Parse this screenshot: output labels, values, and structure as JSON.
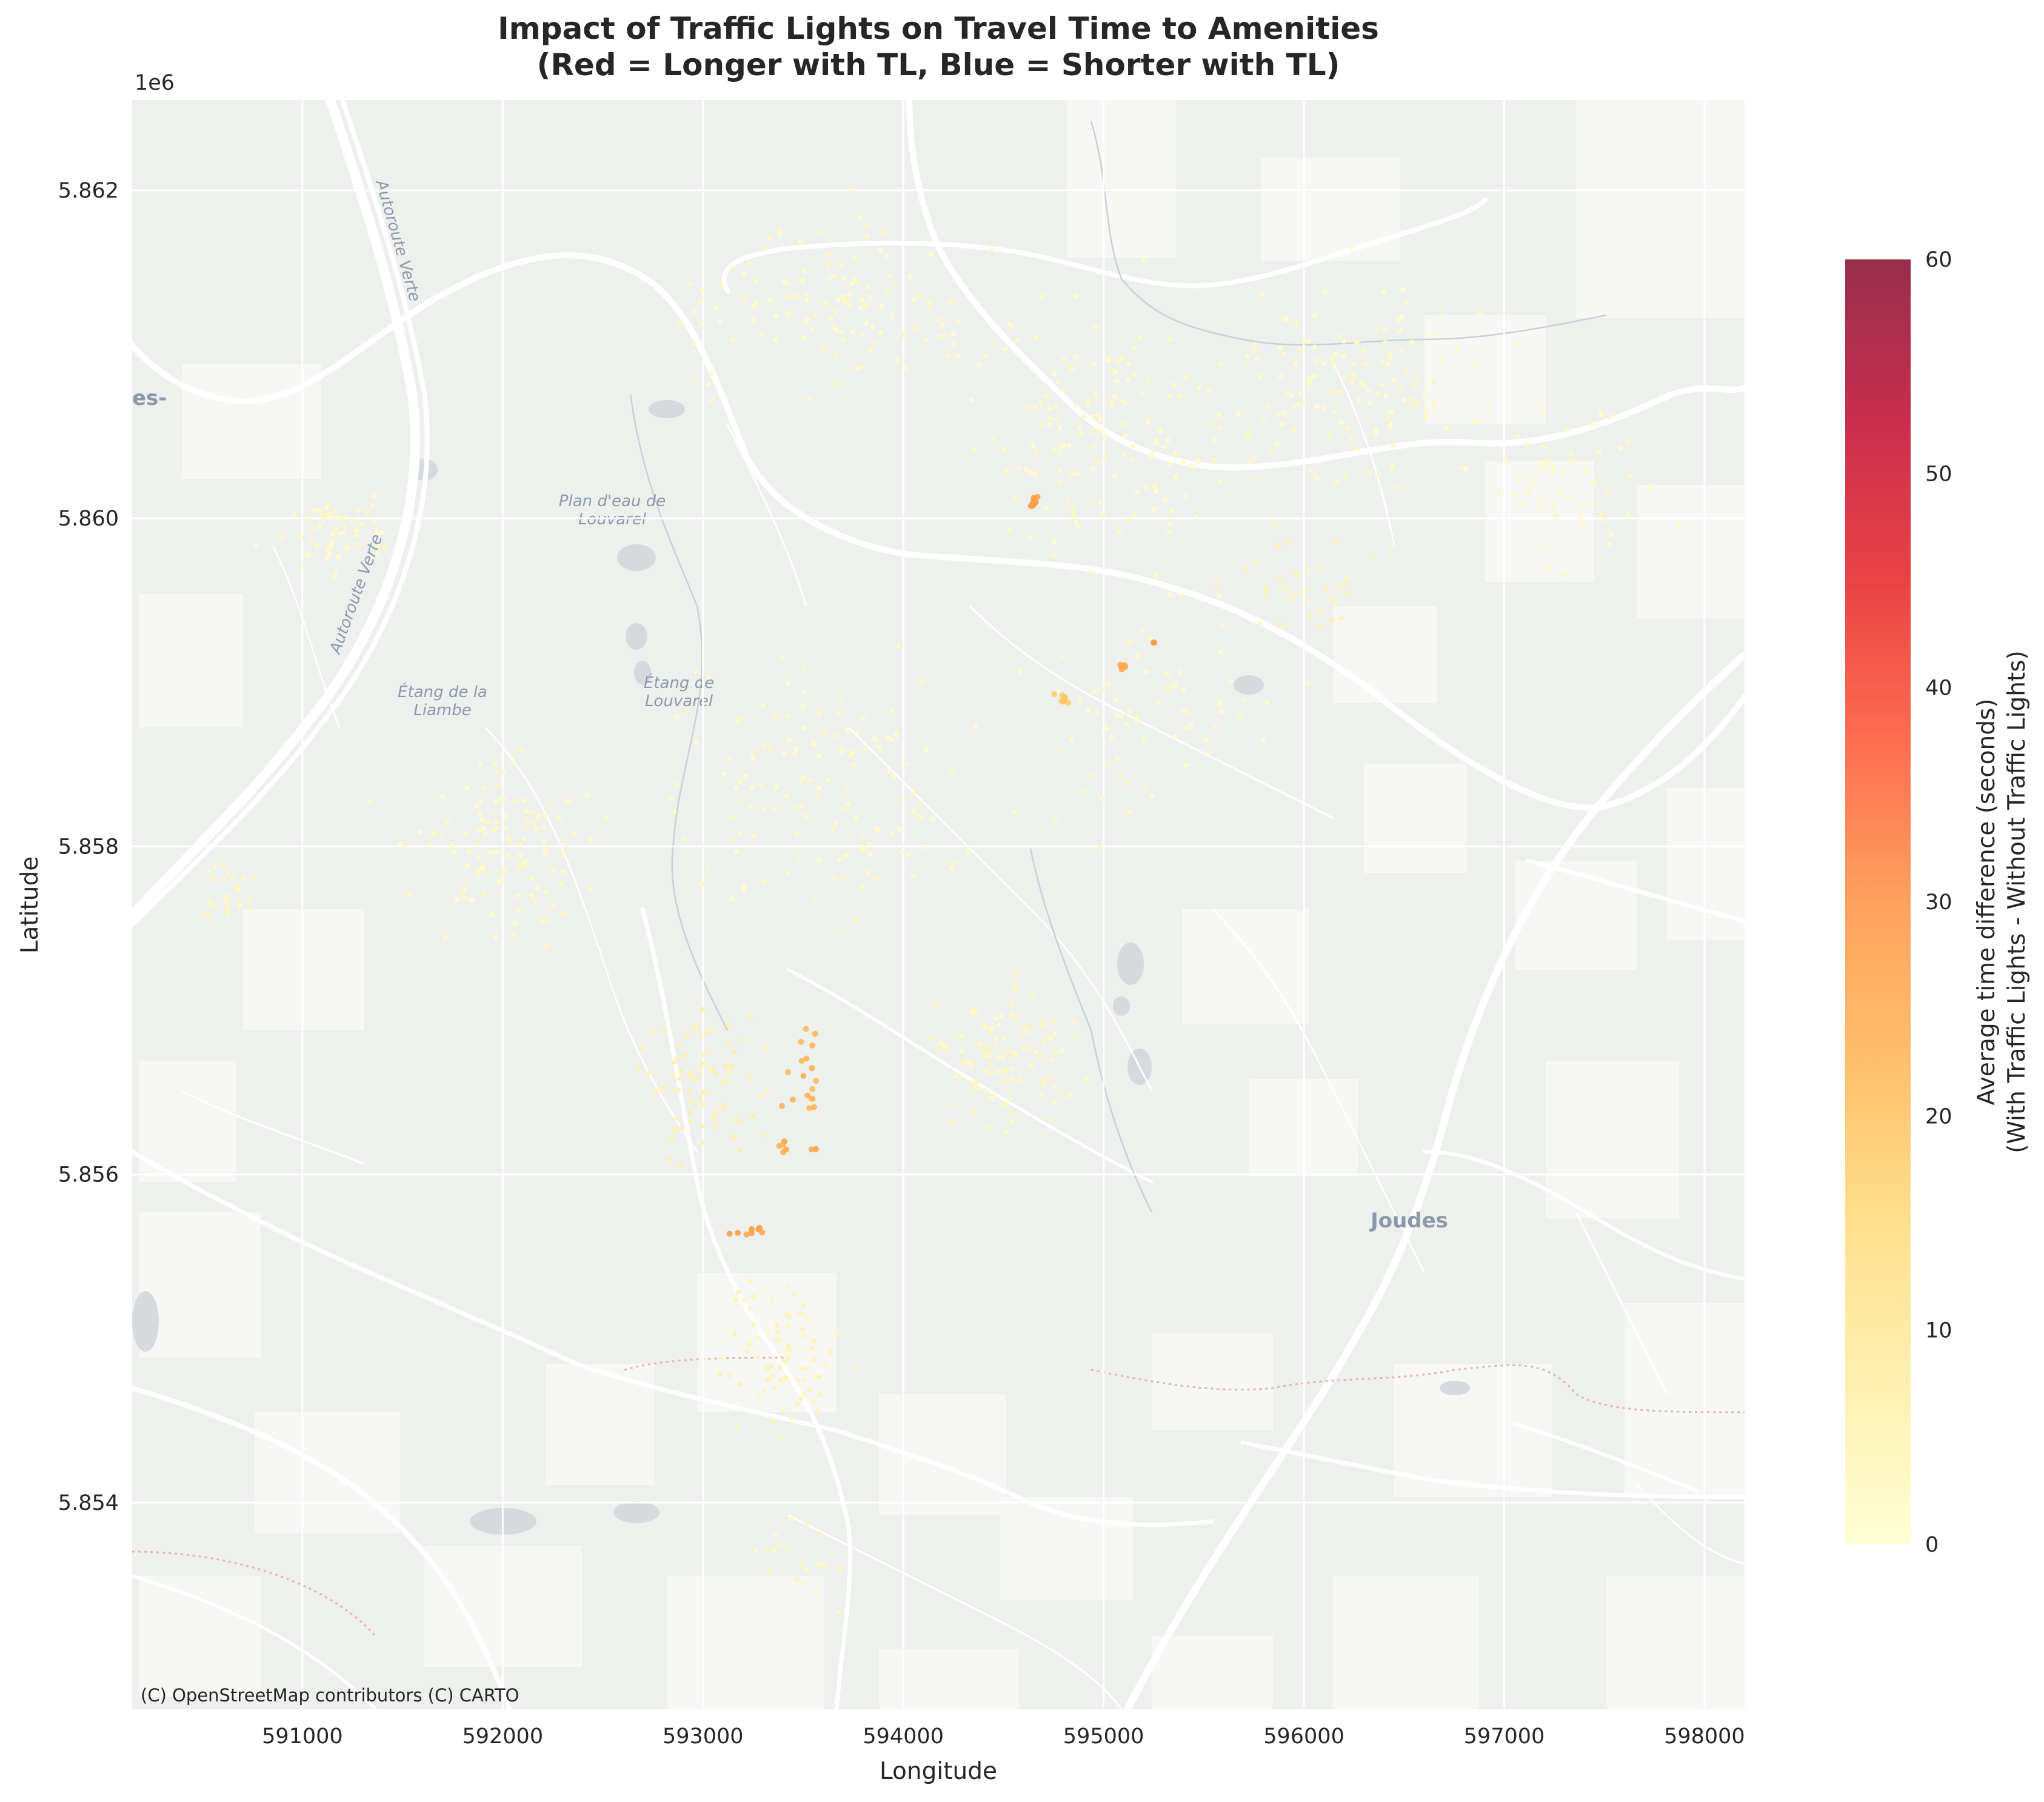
{
  "chart_data": {
    "type": "scatter",
    "title_line1": "Impact of Traffic Lights on Travel Time to Amenities",
    "title_line2": "(Red = Longer with TL, Blue = Shorter with TL)",
    "xlabel": "Longitude",
    "ylabel": "Latitude",
    "y_offset_label": "1e6",
    "xlim": [
      590150,
      598200
    ],
    "ylim": [
      5852740,
      5862550
    ],
    "x_ticks": [
      591000,
      592000,
      593000,
      594000,
      595000,
      596000,
      597000,
      598000
    ],
    "x_tick_labels": [
      "591000",
      "592000",
      "593000",
      "594000",
      "595000",
      "596000",
      "597000",
      "598000"
    ],
    "y_ticks": [
      5854000,
      5856000,
      5858000,
      5860000,
      5862000
    ],
    "y_tick_labels": [
      "5.854",
      "5.856",
      "5.858",
      "5.860",
      "5.862"
    ],
    "grid": true,
    "colorbar": {
      "label_line1": "Average time difference (seconds)",
      "label_line2": "(With Traffic Lights - Without Traffic Lights)",
      "range": [
        0,
        60
      ],
      "ticks": [
        0,
        10,
        20,
        30,
        40,
        50,
        60
      ],
      "tick_labels": [
        "0",
        "10",
        "20",
        "30",
        "40",
        "50",
        "60"
      ],
      "colormap": "YlOrRd",
      "colors": [
        "#ffffcc",
        "#ffeda0",
        "#fed976",
        "#feb24c",
        "#fd8d3c",
        "#fc4e2a",
        "#e31a1c",
        "#bd0026",
        "#800026"
      ]
    },
    "attribution": "(C) OpenStreetMap contributors (C) CARTO",
    "map_labels": {
      "autoroute": "Autoroute Verte",
      "plan_eau_1": "Plan d'eau de",
      "plan_eau_2": "Louvarel",
      "etang_liambe_1": "Étang de la",
      "etang_liambe_2": "Liambe",
      "etang_louvarel_1": "Étang de",
      "etang_louvarel_2": "Louvarel",
      "joudes": "Joudes",
      "edge_fragment": "es-"
    },
    "point_clusters": [
      {
        "x": 592000,
        "y": 5858000,
        "spread": [
          350,
          450
        ],
        "n": 120,
        "value": 2
      },
      {
        "x": 591200,
        "y": 5859900,
        "spread": [
          250,
          200
        ],
        "n": 60,
        "value": 2
      },
      {
        "x": 590650,
        "y": 5857700,
        "spread": [
          120,
          150
        ],
        "n": 25,
        "value": 3
      },
      {
        "x": 593000,
        "y": 5856500,
        "spread": [
          250,
          350
        ],
        "n": 80,
        "value": 6
      },
      {
        "x": 594500,
        "y": 5856700,
        "spread": [
          300,
          350
        ],
        "n": 110,
        "value": 3
      },
      {
        "x": 593600,
        "y": 5858400,
        "spread": [
          600,
          600
        ],
        "n": 140,
        "value": 2
      },
      {
        "x": 593400,
        "y": 5854900,
        "spread": [
          250,
          350
        ],
        "n": 80,
        "value": 4
      },
      {
        "x": 593700,
        "y": 5861300,
        "spread": [
          600,
          400
        ],
        "n": 130,
        "value": 2
      },
      {
        "x": 595000,
        "y": 5860500,
        "spread": [
          550,
          600
        ],
        "n": 150,
        "value": 2
      },
      {
        "x": 596300,
        "y": 5860800,
        "spread": [
          550,
          500
        ],
        "n": 140,
        "value": 2
      },
      {
        "x": 597300,
        "y": 5860200,
        "spread": [
          350,
          400
        ],
        "n": 60,
        "value": 2
      },
      {
        "x": 595300,
        "y": 5858800,
        "spread": [
          500,
          600
        ],
        "n": 70,
        "value": 2
      },
      {
        "x": 596000,
        "y": 5859600,
        "spread": [
          300,
          250
        ],
        "n": 40,
        "value": 5
      },
      {
        "x": 593500,
        "y": 5853600,
        "spread": [
          200,
          300
        ],
        "n": 20,
        "value": 3
      },
      {
        "x": 594650,
        "y": 5860100,
        "spread": [
          25,
          50
        ],
        "n": 10,
        "value": 27
      },
      {
        "x": 595100,
        "y": 5859100,
        "spread": [
          25,
          20
        ],
        "n": 6,
        "value": 25
      },
      {
        "x": 595250,
        "y": 5859250,
        "spread": [
          10,
          10
        ],
        "n": 2,
        "value": 28
      },
      {
        "x": 594800,
        "y": 5858900,
        "spread": [
          35,
          30
        ],
        "n": 7,
        "value": 18
      },
      {
        "x": 593250,
        "y": 5855650,
        "spread": [
          70,
          25
        ],
        "n": 9,
        "value": 26
      },
      {
        "x": 593500,
        "y": 5856700,
        "spread": [
          90,
          350
        ],
        "n": 18,
        "value": 22
      },
      {
        "x": 593400,
        "y": 5856200,
        "spread": [
          35,
          50
        ],
        "n": 6,
        "value": 23
      },
      {
        "x": 593550,
        "y": 5856150,
        "spread": [
          10,
          10
        ],
        "n": 2,
        "value": 26
      }
    ]
  }
}
